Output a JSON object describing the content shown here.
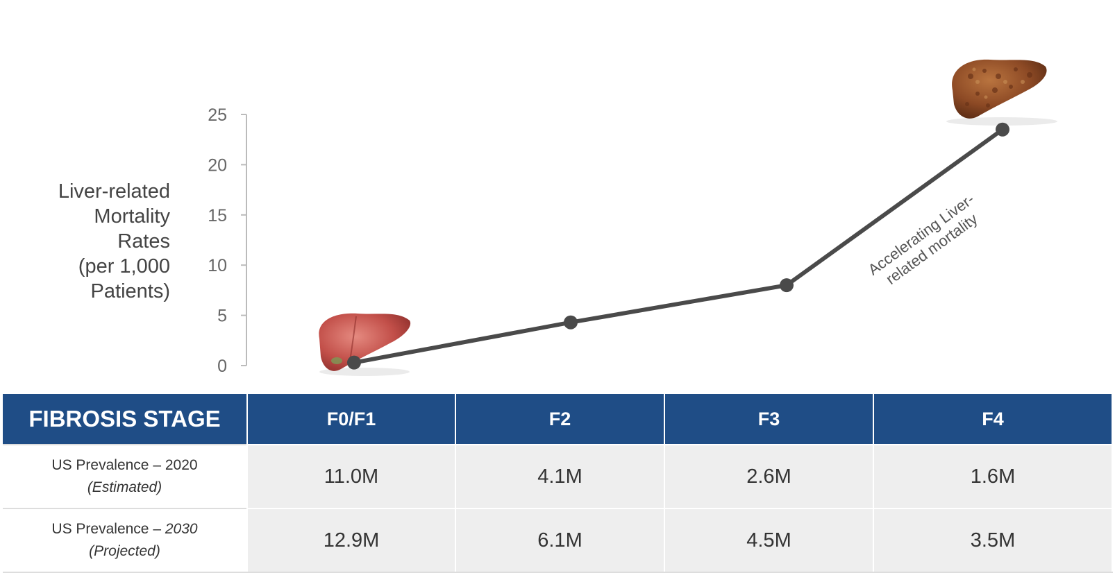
{
  "chart_data": {
    "type": "line",
    "ylabel_lines": [
      "Liver-related",
      "Mortality",
      "Rates",
      "(per 1,000",
      "Patients)"
    ],
    "ylim": [
      0,
      25
    ],
    "yticks": [
      "0",
      "5",
      "10",
      "15",
      "20",
      "25"
    ],
    "categories": [
      "F0/F1",
      "F2",
      "F3",
      "F4"
    ],
    "values": [
      0.3,
      4.3,
      8.0,
      23.5
    ],
    "series_color": "#4a4a4a",
    "annotation_lines": [
      "Accelerating Liver-",
      "related mortality"
    ],
    "grid": false,
    "icons": {
      "healthy": "healthy-liver-icon",
      "cirrhotic": "cirrhotic-liver-icon"
    }
  },
  "table": {
    "stage_header": "FIBROSIS STAGE",
    "header_color": "#1f4d86",
    "columns": [
      "F0/F1",
      "F2",
      "F3",
      "F4"
    ],
    "rows": [
      {
        "label_main": "US Prevalence – 2020",
        "label_sub": "(Estimated)",
        "values": [
          "11.0M",
          "4.1M",
          "2.6M",
          "1.6M"
        ]
      },
      {
        "label_main": "US Prevalence –",
        "label_year": "2030",
        "label_sub": "(Projected)",
        "values": [
          "12.9M",
          "6.1M",
          "4.5M",
          "3.5M"
        ]
      }
    ]
  }
}
